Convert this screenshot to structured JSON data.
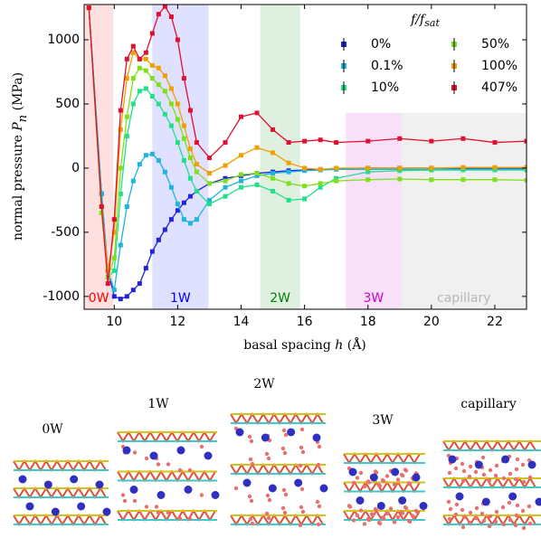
{
  "chart_data": {
    "type": "line",
    "xlabel": [
      "basal spacing ",
      "h",
      " (Å)"
    ],
    "ylabel": [
      "normal pressure ",
      "P",
      "n",
      " (MPa)"
    ],
    "legend_title": [
      "f/f",
      "sat"
    ],
    "xlim": [
      9.05,
      23
    ],
    "ylim": [
      -1100,
      1275
    ],
    "xticks": [
      10,
      12,
      14,
      16,
      18,
      20,
      22
    ],
    "yticks": [
      -1000,
      -500,
      0,
      500,
      1000
    ],
    "regions": [
      {
        "label": "0W",
        "xlim": [
          9.05,
          9.97
        ],
        "top": 1275,
        "color": "#ff0000"
      },
      {
        "label": "1W",
        "xlim": [
          11.2,
          12.97
        ],
        "top": 1275,
        "color": "#0000ff"
      },
      {
        "label": "2W",
        "xlim": [
          14.6,
          15.86
        ],
        "top": 1275,
        "color": "#008000"
      },
      {
        "label": "3W",
        "xlim": [
          17.3,
          19.05
        ],
        "top": 430,
        "color": "#cc00cc"
      },
      {
        "label": "capillary",
        "xlim": [
          19.05,
          23
        ],
        "top": 430,
        "color": "#808080"
      }
    ],
    "x": [
      9.2,
      9.6,
      9.8,
      10,
      10.2,
      10.4,
      10.6,
      10.8,
      11,
      11.2,
      11.4,
      11.6,
      11.8,
      12,
      12.2,
      12.4,
      12.6,
      13,
      13.5,
      14,
      14.5,
      15,
      15.5,
      16,
      16.5,
      17,
      18,
      19,
      20,
      21,
      22,
      23
    ],
    "series": [
      {
        "name": "0%",
        "color": "#2222dd",
        "values": [
          1250,
          -200,
          -800,
          -1000,
          -1020,
          -1000,
          -950,
          -900,
          -780,
          -650,
          -560,
          -480,
          -400,
          -330,
          -270,
          -220,
          -180,
          -120,
          -80,
          -60,
          -40,
          -30,
          -20,
          -15,
          -10,
          -5,
          0,
          0,
          0,
          0,
          0,
          0
        ]
      },
      {
        "name": "0.1%",
        "color": "#1eb4dc",
        "values": [
          1250,
          -200,
          -800,
          -950,
          -600,
          -300,
          -100,
          30,
          100,
          110,
          60,
          -30,
          -150,
          -280,
          -400,
          -430,
          -400,
          -250,
          -150,
          -100,
          -60,
          -40,
          -30,
          -20,
          -15,
          -10,
          -10,
          -10,
          -10,
          -10,
          -10,
          -10
        ]
      },
      {
        "name": "10%",
        "color": "#20e08a",
        "values": [
          1250,
          -300,
          -850,
          -800,
          -200,
          250,
          500,
          600,
          620,
          560,
          500,
          420,
          330,
          200,
          60,
          -80,
          -180,
          -280,
          -220,
          -150,
          -130,
          -180,
          -250,
          -240,
          -150,
          -80,
          -30,
          -20,
          -15,
          -15,
          -15,
          -15
        ]
      },
      {
        "name": "50%",
        "color": "#7ee01a",
        "values": [
          1250,
          -350,
          -850,
          -700,
          0,
          400,
          700,
          780,
          760,
          700,
          650,
          600,
          500,
          380,
          230,
          80,
          -30,
          -120,
          -100,
          -50,
          -40,
          -80,
          -120,
          -140,
          -120,
          -100,
          -90,
          -85,
          -90,
          -90,
          -90,
          -95
        ]
      },
      {
        "name": "100%",
        "color": "#f0a000",
        "values": [
          1250,
          -300,
          -800,
          -500,
          300,
          700,
          900,
          850,
          850,
          800,
          780,
          720,
          620,
          500,
          330,
          150,
          30,
          -40,
          20,
          100,
          160,
          120,
          40,
          0,
          -10,
          0,
          0,
          0,
          0,
          5,
          5,
          5
        ]
      },
      {
        "name": "407%",
        "color": "#e01030",
        "values": [
          1250,
          -300,
          -900,
          -400,
          450,
          850,
          950,
          850,
          900,
          1050,
          1200,
          1260,
          1180,
          1000,
          700,
          450,
          200,
          80,
          200,
          400,
          430,
          300,
          200,
          210,
          220,
          200,
          210,
          230,
          210,
          230,
          200,
          210
        ]
      }
    ]
  },
  "snapshots": [
    {
      "label": "0W"
    },
    {
      "label": "1W"
    },
    {
      "label": "2W"
    },
    {
      "label": "3W"
    },
    {
      "label": "capillary"
    }
  ]
}
